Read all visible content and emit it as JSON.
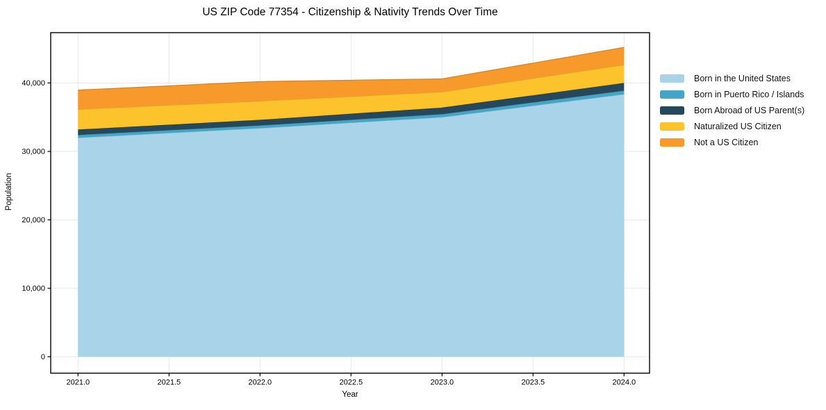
{
  "chart_data": {
    "type": "area",
    "stacked": true,
    "title": "US ZIP Code 77354 - Citizenship & Nativity Trends Over Time",
    "xlabel": "Year",
    "ylabel": "Population",
    "x": [
      2021,
      2022,
      2023,
      2024
    ],
    "series": [
      {
        "name": "Born in the United States",
        "color": "#a8d3e8",
        "values": [
          32000,
          33400,
          35000,
          38350
        ]
      },
      {
        "name": "Born in Puerto Rico / Islands",
        "color": "#45a5c5",
        "values": [
          400,
          400,
          450,
          530
        ]
      },
      {
        "name": "Born Abroad of US Parent(s)",
        "color": "#25485c",
        "values": [
          800,
          820,
          950,
          1120
        ]
      },
      {
        "name": "Naturalized US Citizen",
        "color": "#fcc32d",
        "values": [
          2950,
          2750,
          2300,
          2660
        ]
      },
      {
        "name": "Not a US Citizen",
        "color": "#f8992b",
        "values": [
          2800,
          2830,
          1900,
          2540
        ]
      }
    ],
    "stack_totals": [
      38950,
      40200,
      40600,
      45200
    ],
    "xlim": [
      2020.85,
      2024.14
    ],
    "ylim": [
      -2400,
      47350
    ],
    "xticks": {
      "values": [
        2021.0,
        2021.5,
        2022.0,
        2022.5,
        2023.0,
        2023.5,
        2024.0
      ],
      "labels": [
        "2021.0",
        "2021.5",
        "2022.0",
        "2022.5",
        "2023.0",
        "2023.5",
        "2024.0"
      ]
    },
    "yticks": {
      "values": [
        0,
        10000,
        20000,
        30000,
        40000
      ],
      "labels": [
        "0",
        "10,000",
        "20,000",
        "30,000",
        "40,000"
      ]
    },
    "grid": true,
    "grid_color": "#e7e7e7",
    "spine_color": "#000000",
    "legend_position": "right-outside"
  }
}
